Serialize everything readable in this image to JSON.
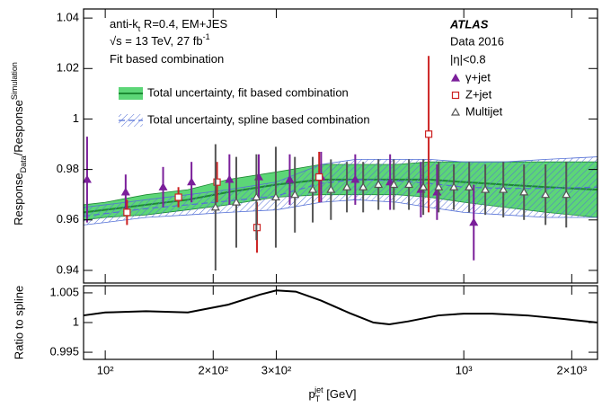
{
  "chart_data": [
    {
      "type": "errorbar",
      "ylabel": [
        "Response",
        "Data",
        "/Response",
        "Simulation"
      ],
      "log_x": true,
      "xlim": [
        87,
        2360
      ],
      "ylim": [
        0.935,
        1.0436
      ],
      "yticks": [
        0.94,
        0.96,
        0.98,
        1,
        1.02,
        1.04
      ],
      "annotations": [
        [
          "anti-k",
          "t",
          " R=0.4, EM+JES"
        ],
        [
          "√s = 13 TeV, 27 fb",
          "-1"
        ],
        [
          "Fit based combination"
        ]
      ],
      "experiment": "ATLAS",
      "dataset": "Data 2016",
      "selection": "|η|<0.8",
      "bands": [
        {
          "name": "Total uncertainty, fit based combination",
          "color": "#3fcf5f",
          "line_color": "#1d8a33",
          "x": [
            87,
            100,
            130,
            170,
            220,
            300,
            400,
            500,
            650,
            800,
            1000,
            1300,
            1700,
            2360
          ],
          "center": [
            0.963,
            0.964,
            0.966,
            0.968,
            0.971,
            0.974,
            0.976,
            0.976,
            0.976,
            0.976,
            0.975,
            0.974,
            0.973,
            0.972
          ],
          "lower": [
            0.96,
            0.961,
            0.962,
            0.964,
            0.966,
            0.969,
            0.97,
            0.97,
            0.97,
            0.969,
            0.967,
            0.965,
            0.963,
            0.961
          ],
          "upper": [
            0.966,
            0.967,
            0.97,
            0.972,
            0.976,
            0.979,
            0.982,
            0.982,
            0.982,
            0.983,
            0.983,
            0.983,
            0.983,
            0.983
          ]
        },
        {
          "name": "Total uncertainty, spline based combination",
          "color": "#5470d6",
          "line_color": "#5470d6",
          "x": [
            87,
            100,
            130,
            170,
            220,
            300,
            400,
            500,
            650,
            800,
            1000,
            1300,
            1700,
            2360
          ],
          "center": [
            0.9615,
            0.9625,
            0.9645,
            0.966,
            0.9675,
            0.9695,
            0.9745,
            0.976,
            0.9755,
            0.9745,
            0.973,
            0.9725,
            0.9725,
            0.973
          ],
          "lower": [
            0.958,
            0.959,
            0.961,
            0.962,
            0.963,
            0.964,
            0.967,
            0.968,
            0.967,
            0.965,
            0.963,
            0.962,
            0.961,
            0.961
          ],
          "upper": [
            0.965,
            0.966,
            0.968,
            0.97,
            0.972,
            0.975,
            0.982,
            0.984,
            0.984,
            0.984,
            0.983,
            0.983,
            0.984,
            0.985
          ]
        }
      ],
      "series": [
        {
          "name": "γ+jet",
          "color": "#7b1f9a",
          "marker": "triangle-filled",
          "x": [
            89,
            114,
            145,
            174,
            222,
            268,
            327,
            400,
            498,
            623,
            759,
            842,
            1066
          ],
          "values": [
            0.976,
            0.971,
            0.973,
            0.975,
            0.976,
            0.977,
            0.976,
            0.977,
            0.976,
            0.975,
            0.972,
            0.971,
            0.959
          ],
          "errors": [
            0.017,
            0.007,
            0.008,
            0.008,
            0.01,
            0.009,
            0.01,
            0.01,
            0.01,
            0.011,
            0.011,
            0.011,
            0.015
          ]
        },
        {
          "name": "Z+jet",
          "color": "#cc2222",
          "marker": "square-open",
          "x": [
            115,
            160,
            205,
            265,
            395,
            798
          ],
          "values": [
            0.963,
            0.969,
            0.975,
            0.957,
            0.977,
            0.994
          ],
          "errors": [
            0.005,
            0.004,
            0.008,
            0.01,
            0.01,
            0.031
          ]
        },
        {
          "name": "Multijet",
          "color": "#555555",
          "marker": "triangle-open",
          "x": [
            203,
            232,
            264,
            299,
            338,
            379,
            426,
            472,
            524,
            578,
            638,
            703,
            771,
            851,
            938,
            1035,
            1148,
            1289,
            1472,
            1690,
            1931
          ],
          "values": [
            0.965,
            0.967,
            0.969,
            0.969,
            0.97,
            0.972,
            0.972,
            0.973,
            0.973,
            0.974,
            0.974,
            0.974,
            0.973,
            0.973,
            0.973,
            0.973,
            0.972,
            0.972,
            0.971,
            0.97,
            0.97
          ],
          "errors": [
            0.025,
            0.018,
            0.017,
            0.02,
            0.015,
            0.013,
            0.012,
            0.01,
            0.01,
            0.01,
            0.01,
            0.01,
            0.011,
            0.01,
            0.009,
            0.01,
            0.01,
            0.011,
            0.011,
            0.012,
            0.013
          ]
        }
      ]
    },
    {
      "type": "line",
      "ylabel": "Ratio to spline",
      "xlabel": [
        "p",
        "T",
        "jet",
        " [GeV]"
      ],
      "log_x": true,
      "xlim": [
        87,
        2360
      ],
      "ylim": [
        0.9938,
        1.0062
      ],
      "yticks": [
        0.995,
        1,
        1.005
      ],
      "xticks": [
        {
          "value": 100,
          "label": "10²"
        },
        {
          "value": 200,
          "label": "2×10²"
        },
        {
          "value": 300,
          "label": "3×10²"
        },
        {
          "value": 1000,
          "label": "10³"
        },
        {
          "value": 2000,
          "label": "2×10³"
        }
      ],
      "color": "#000000",
      "x": [
        87,
        100,
        130,
        170,
        220,
        270,
        300,
        340,
        400,
        480,
        560,
        620,
        700,
        850,
        1000,
        1200,
        1500,
        1900,
        2360
      ],
      "values": [
        1.0012,
        1.0017,
        1.0019,
        1.0017,
        1.003,
        1.0047,
        1.0054,
        1.0052,
        1.0037,
        1.0016,
        1.0,
        0.9997,
        1.0002,
        1.0012,
        1.0015,
        1.0015,
        1.0012,
        1.0006,
        1.0
      ]
    }
  ]
}
